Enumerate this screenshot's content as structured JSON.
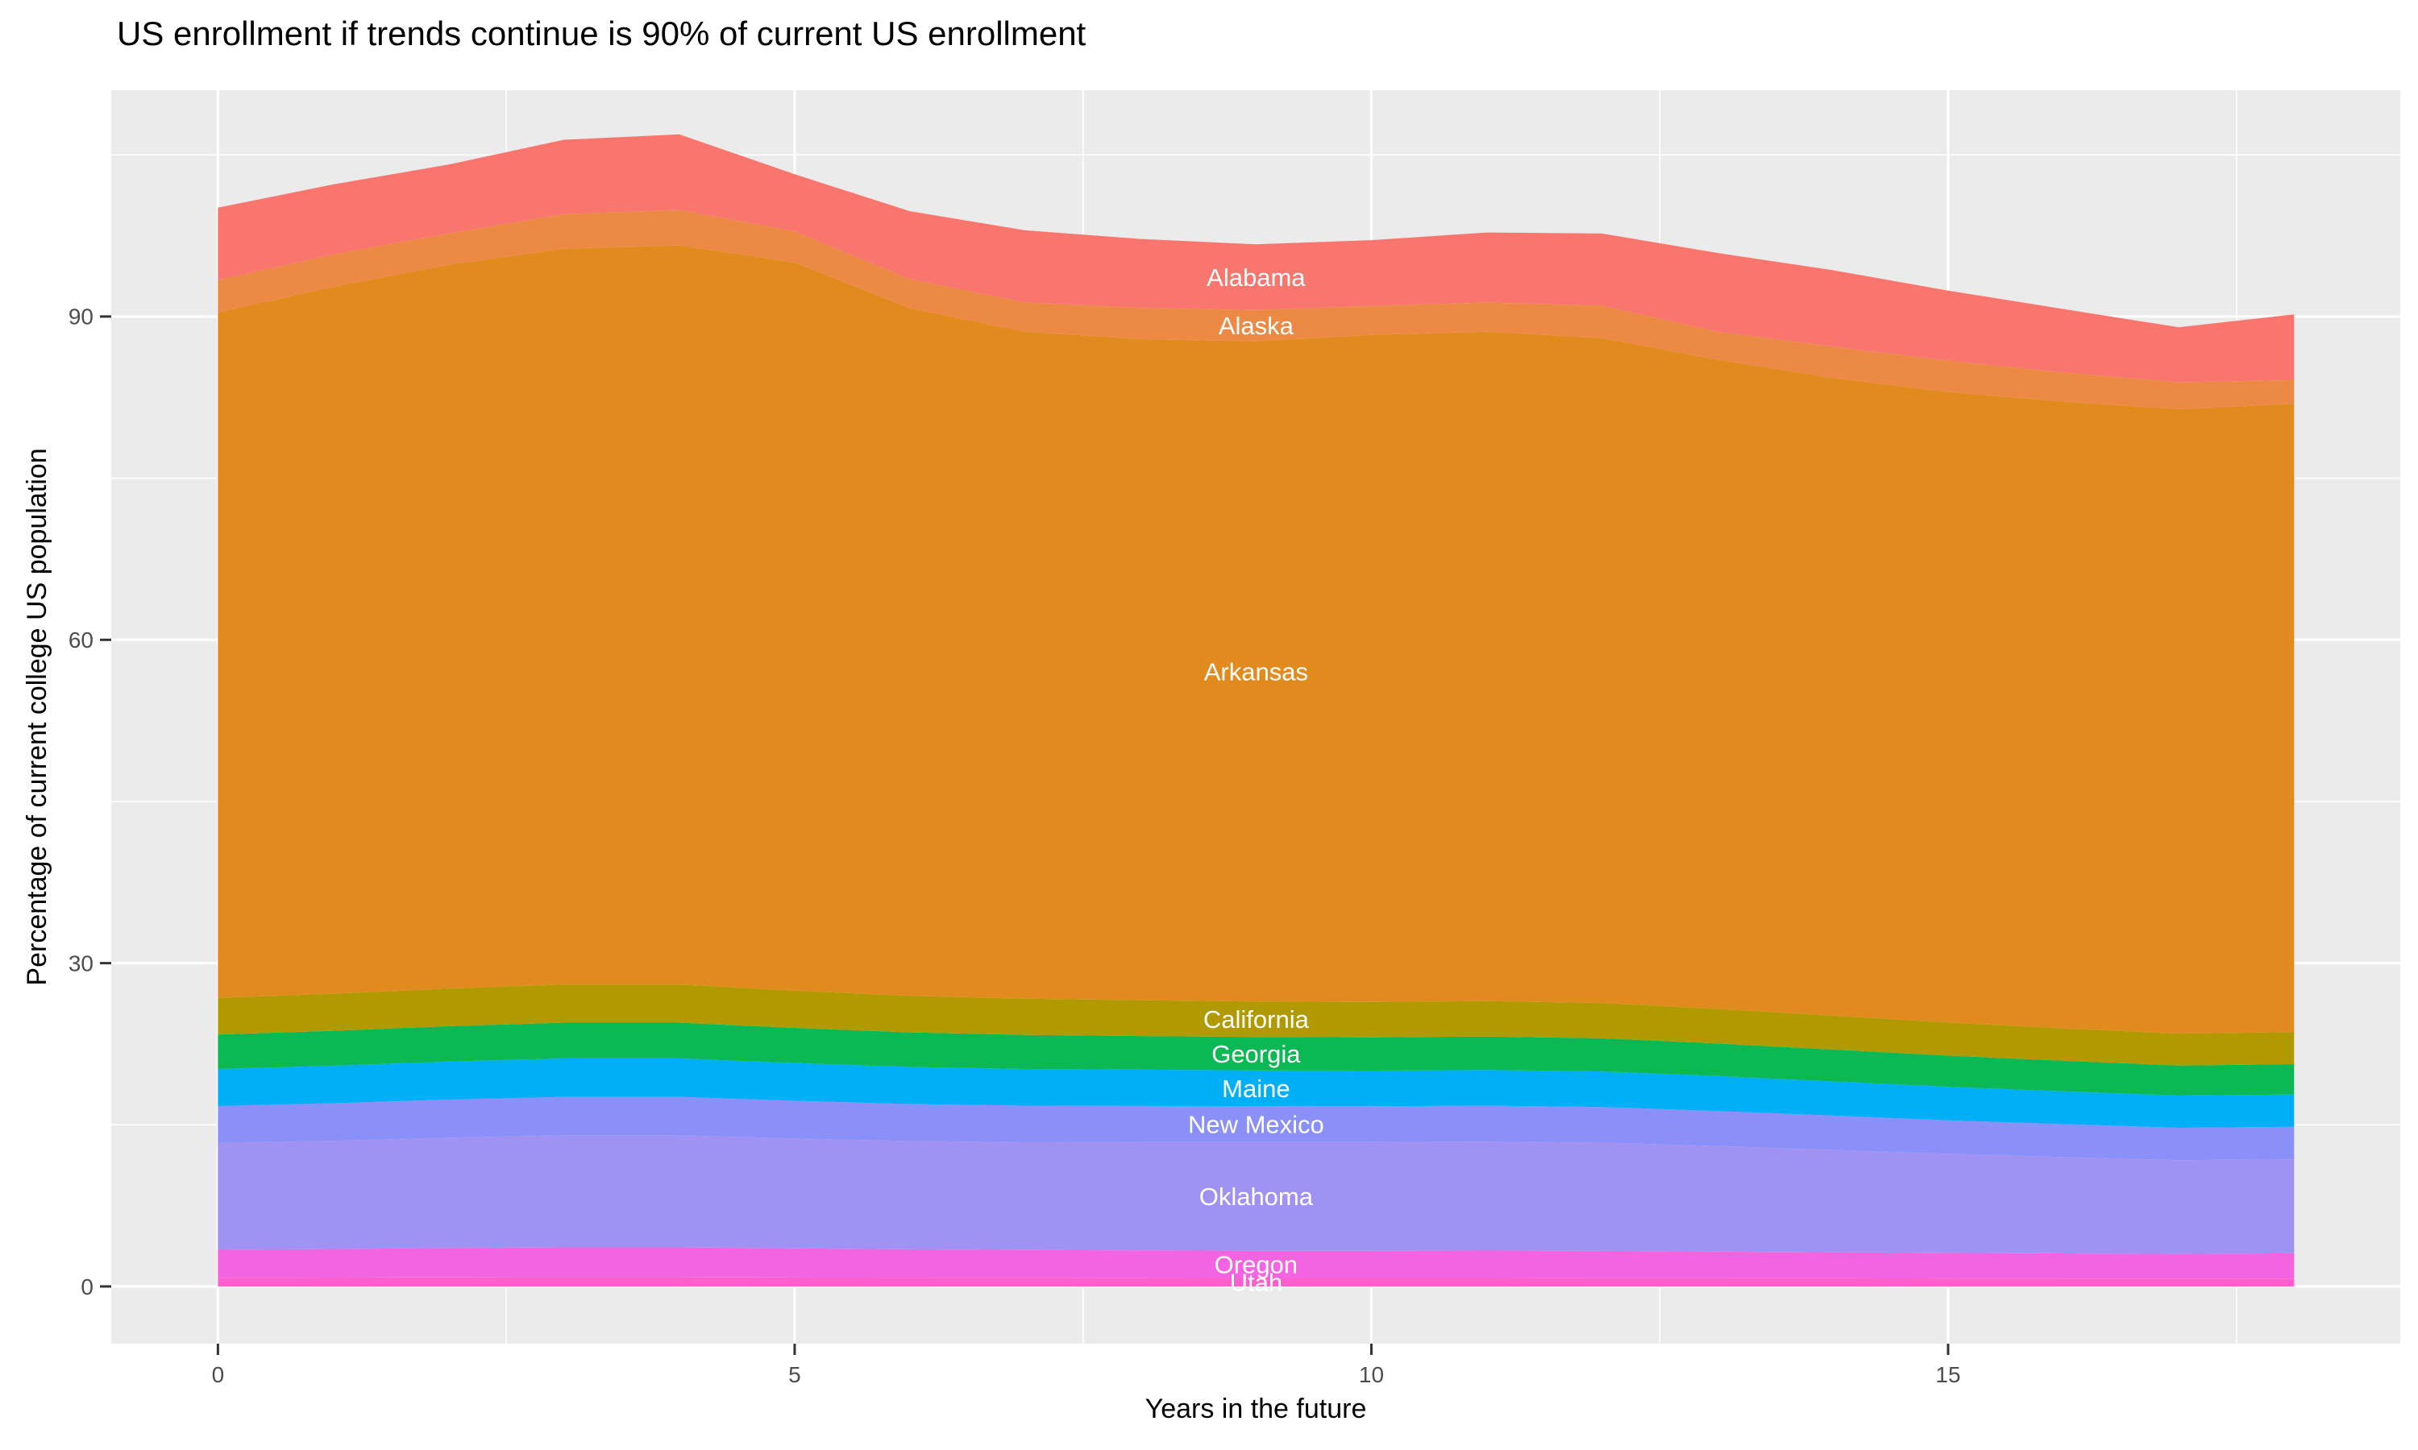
{
  "title": "US enrollment if trends continue is 90% of current US enrollment",
  "chart_data": {
    "type": "area",
    "stacked": true,
    "title": "US enrollment if trends continue is 90% of current US enrollment",
    "xlabel": "Years in the future",
    "ylabel": "Percentage of current college US population",
    "x": [
      0,
      1,
      2,
      3,
      4,
      5,
      6,
      7,
      8,
      9,
      10,
      11,
      12,
      13,
      14,
      15,
      16,
      17,
      18
    ],
    "x_ticks": [
      0,
      5,
      10,
      15
    ],
    "y_ticks": [
      0,
      30,
      60,
      90
    ],
    "x_minor_ticks": [
      2.5,
      7.5,
      12.5,
      17.5
    ],
    "y_minor_ticks": [
      15,
      45,
      75,
      105
    ],
    "xlim": [
      -0.925,
      18.92
    ],
    "ylim": [
      -5.31,
      111.0
    ],
    "grid": true,
    "legend_position": "none",
    "panel_bg": "#EBEBEB",
    "grid_color": "#FFFFFF",
    "axis_text_color": "#4D4D4D",
    "tick_mark_color": "#333333",
    "label_text_color": "#FFFFFF",
    "label_x_year": 9,
    "series_bottom_to_top": [
      {
        "name": "Utah",
        "color": "#FB60CE",
        "values": [
          0.8,
          0.82,
          0.84,
          0.85,
          0.85,
          0.83,
          0.81,
          0.8,
          0.79,
          0.78,
          0.78,
          0.78,
          0.77,
          0.76,
          0.75,
          0.74,
          0.73,
          0.72,
          0.72
        ]
      },
      {
        "name": "Oregon",
        "color": "#F464E0",
        "values": [
          2.6,
          2.65,
          2.72,
          2.77,
          2.77,
          2.7,
          2.63,
          2.58,
          2.55,
          2.52,
          2.52,
          2.54,
          2.52,
          2.47,
          2.42,
          2.37,
          2.33,
          2.3,
          2.35
        ]
      },
      {
        "name": "Oklahoma",
        "color": "#A092F2",
        "values": [
          9.9,
          10.05,
          10.25,
          10.4,
          10.4,
          10.2,
          10.05,
          10.0,
          10.05,
          10.1,
          10.1,
          10.12,
          10.05,
          9.8,
          9.5,
          9.2,
          8.95,
          8.7,
          8.72
        ]
      },
      {
        "name": "New Mexico",
        "color": "#8A90F8",
        "values": [
          3.44,
          3.48,
          3.53,
          3.57,
          3.57,
          3.5,
          3.44,
          3.4,
          3.36,
          3.33,
          3.32,
          3.33,
          3.31,
          3.25,
          3.18,
          3.11,
          3.05,
          3.0,
          3.02
        ]
      },
      {
        "name": "Maine",
        "color": "#00AFF5",
        "values": [
          3.44,
          3.48,
          3.53,
          3.57,
          3.57,
          3.5,
          3.44,
          3.4,
          3.36,
          3.32,
          3.31,
          3.32,
          3.3,
          3.24,
          3.17,
          3.1,
          3.04,
          2.99,
          3.01
        ]
      },
      {
        "name": "Georgia",
        "color": "#0CB853",
        "values": [
          3.2,
          3.24,
          3.28,
          3.32,
          3.32,
          3.26,
          3.2,
          3.16,
          3.13,
          3.1,
          3.09,
          3.1,
          3.08,
          3.02,
          2.96,
          2.9,
          2.84,
          2.79,
          2.81
        ]
      },
      {
        "name": "California",
        "color": "#B19A01",
        "values": [
          3.4,
          3.44,
          3.49,
          3.53,
          3.53,
          3.46,
          3.4,
          3.36,
          3.32,
          3.29,
          3.28,
          3.29,
          3.27,
          3.21,
          3.14,
          3.07,
          3.01,
          2.96,
          2.98
        ]
      },
      {
        "name": "Arkansas",
        "color": "#E18A1E",
        "values": [
          63.62,
          65.6,
          67.16,
          68.29,
          68.59,
          67.55,
          63.8,
          61.9,
          61.34,
          61.26,
          61.89,
          62.12,
          61.7,
          60.25,
          59.18,
          58.51,
          58.15,
          57.94,
          58.29
        ]
      },
      {
        "name": "Alaska",
        "color": "#EC8A45",
        "values": [
          3.0,
          3.0,
          2.9,
          3.2,
          3.3,
          2.9,
          2.7,
          2.7,
          2.9,
          2.9,
          2.7,
          2.7,
          3.0,
          2.6,
          2.9,
          2.9,
          2.7,
          2.5,
          2.2
        ]
      },
      {
        "name": "Alabama",
        "color": "#F8766D",
        "values": [
          6.7,
          6.5,
          6.4,
          6.9,
          7.0,
          5.3,
          6.3,
          6.7,
          6.4,
          6.1,
          6.1,
          6.5,
          6.7,
          7.3,
          7.1,
          6.5,
          5.9,
          5.1,
          6.1
        ]
      }
    ],
    "x_tick_labels": [
      "0",
      "5",
      "10",
      "15"
    ],
    "y_tick_labels": [
      "0",
      "30",
      "60",
      "90"
    ]
  }
}
